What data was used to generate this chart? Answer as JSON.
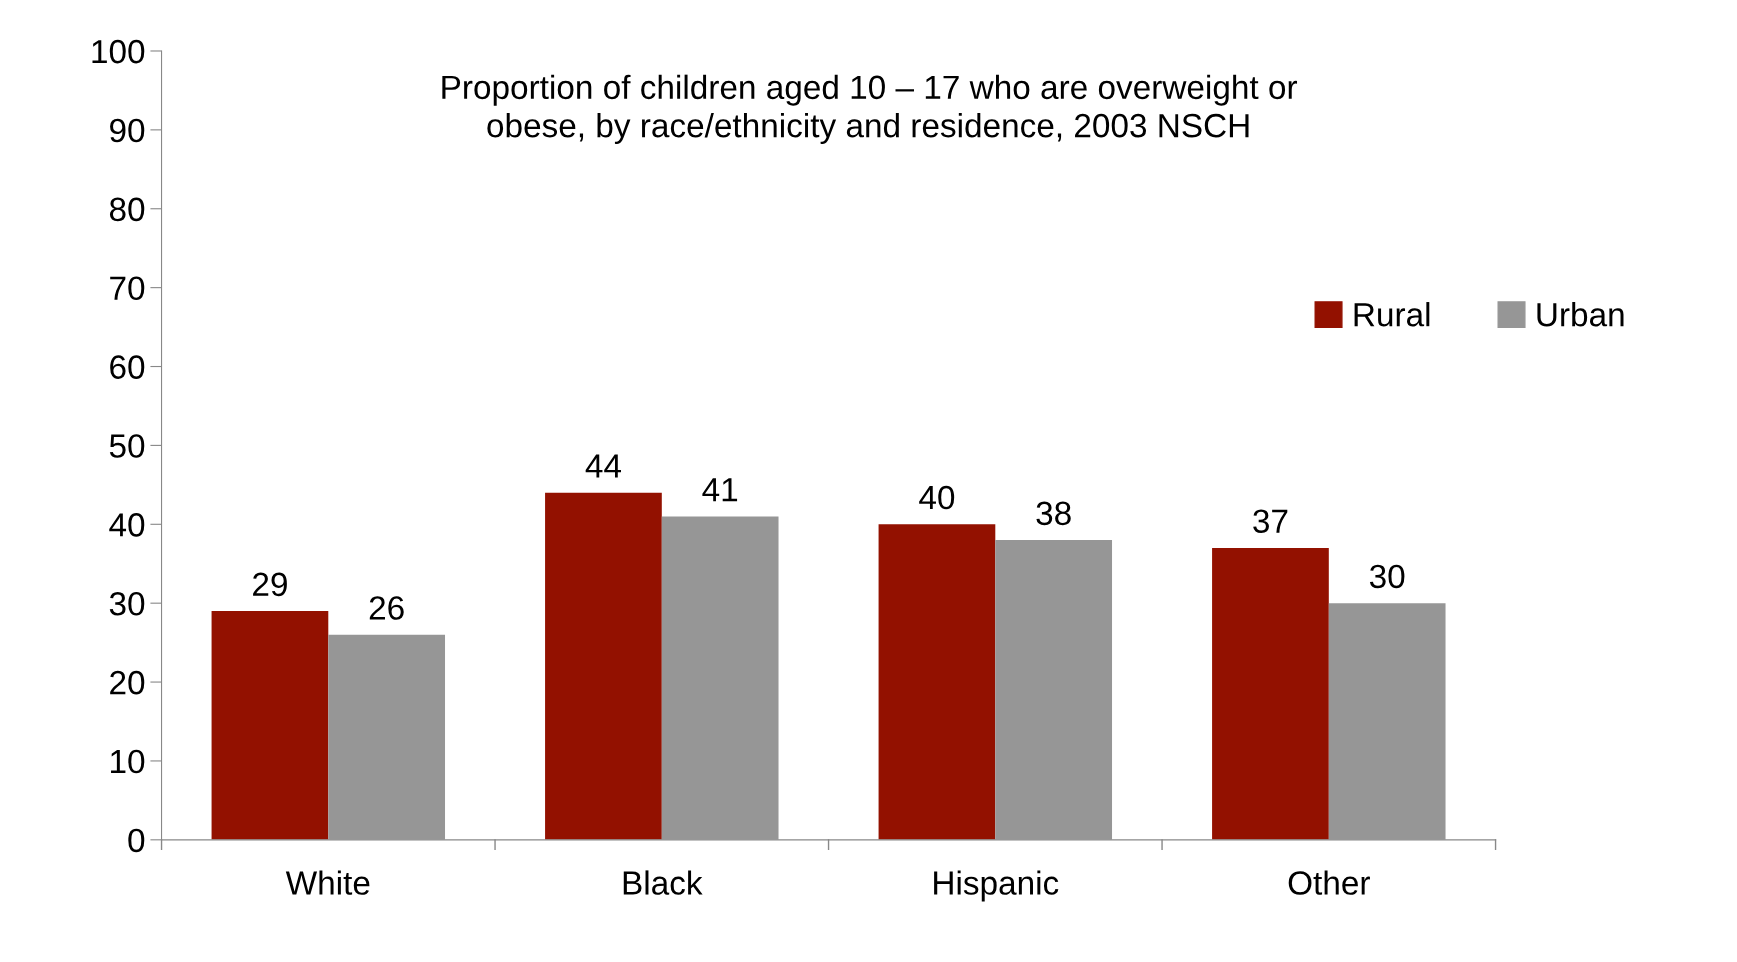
{
  "chart_data": {
    "type": "bar",
    "title": "Proportion of children aged 10 – 17 who are overweight or\nobese, by race/ethnicity and residence, 2003 NSCH",
    "categories": [
      "White",
      "Black",
      "Hispanic",
      "Other"
    ],
    "series": [
      {
        "name": "Rural",
        "color": "#931100",
        "values": [
          29,
          44,
          40,
          37
        ]
      },
      {
        "name": "Urban",
        "color": "#969696",
        "values": [
          26,
          41,
          38,
          30
        ]
      }
    ],
    "ylim": [
      0,
      100
    ],
    "yticks": [
      0,
      10,
      20,
      30,
      40,
      50,
      60,
      70,
      80,
      90,
      100
    ],
    "data_labels": true,
    "grid": false,
    "legend": "top right"
  }
}
